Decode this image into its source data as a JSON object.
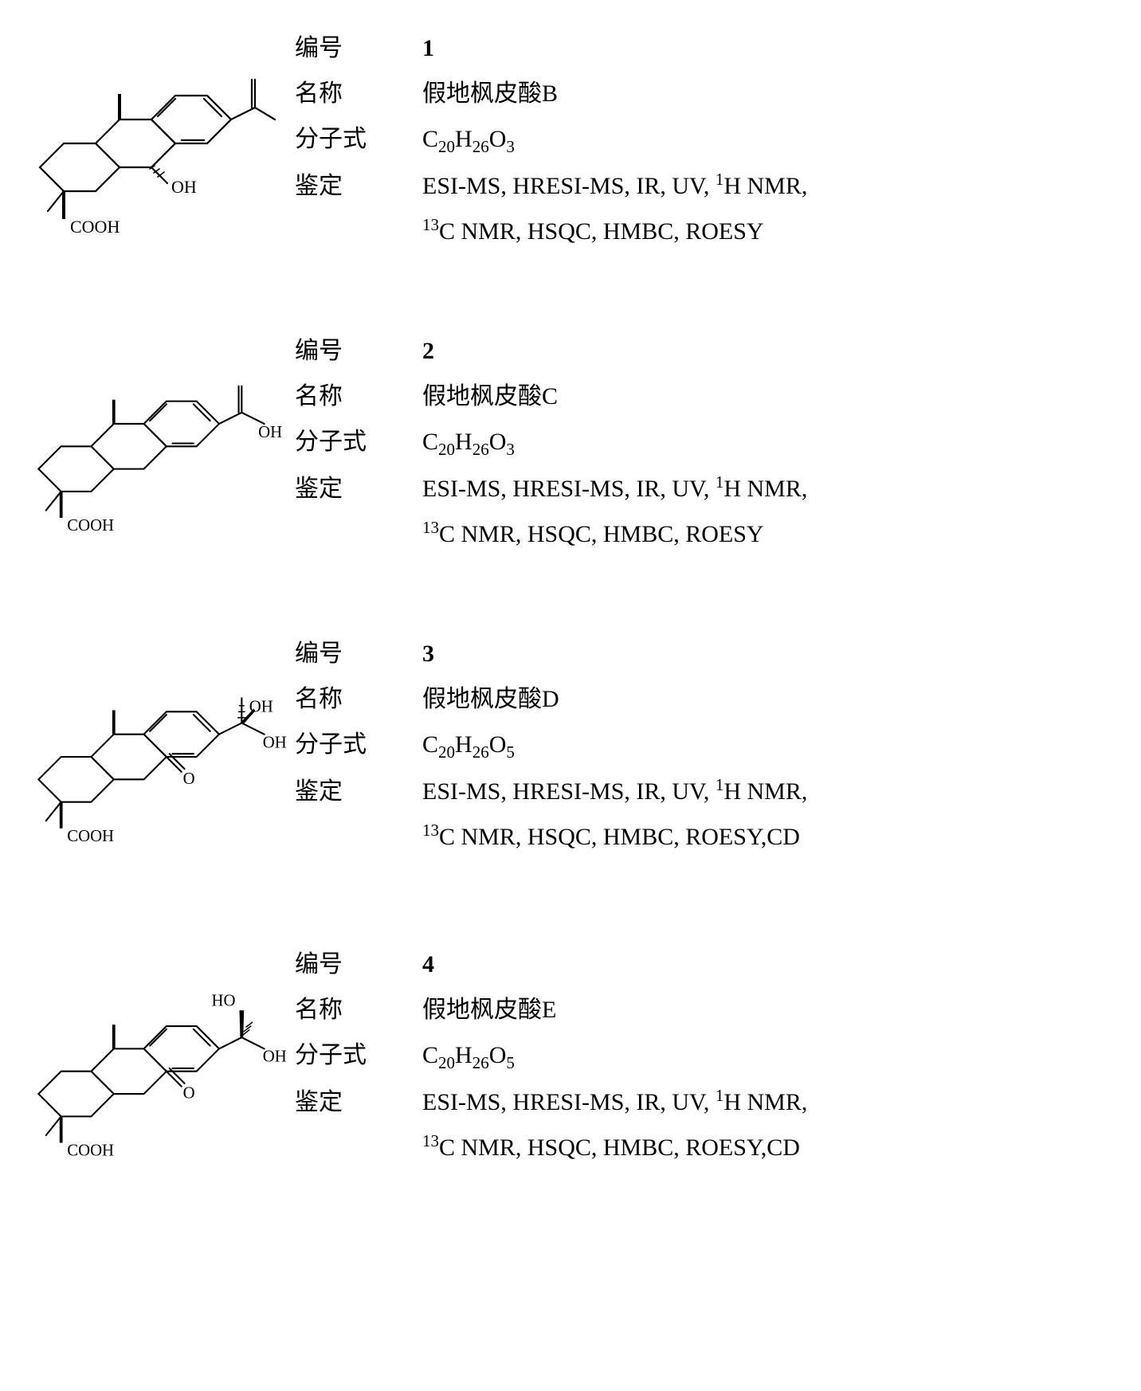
{
  "labels": {
    "number": "编号",
    "name": "名称",
    "formula": "分子式",
    "identification": "鉴定"
  },
  "compounds": [
    {
      "number": "1",
      "name": "假地枫皮酸B",
      "formula_html": "C<sub>20</sub>H<sub>26</sub>O<sub>3</sub>",
      "identification_line1_html": "ESI-MS, HRESI-MS, IR, UV, <sup>1</sup>H NMR,",
      "identification_line2_html": "<sup>13</sup>C NMR, HSQC, HMBC, ROESY"
    },
    {
      "number": "2",
      "name": "假地枫皮酸C",
      "formula_html": "C<sub>20</sub>H<sub>26</sub>O<sub>3</sub>",
      "identification_line1_html": "ESI-MS, HRESI-MS, IR, UV, <sup>1</sup>H NMR,",
      "identification_line2_html": "<sup>13</sup>C NMR, HSQC, HMBC, ROESY"
    },
    {
      "number": "3",
      "name": "假地枫皮酸D",
      "formula_html": "C<sub>20</sub>H<sub>26</sub>O<sub>5</sub>",
      "identification_line1_html": "ESI-MS, HRESI-MS, IR, UV, <sup>1</sup>H NMR,",
      "identification_line2_html": "<sup>13</sup>C NMR, HSQC, HMBC, ROESY,CD"
    },
    {
      "number": "4",
      "name": "假地枫皮酸E",
      "formula_html": "C<sub>20</sub>H<sub>26</sub>O<sub>5</sub>",
      "identification_line1_html": "ESI-MS, HRESI-MS, IR, UV, <sup>1</sup>H NMR,",
      "identification_line2_html": "<sup>13</sup>C NMR, HSQC, HMBC, ROESY,CD"
    }
  ],
  "style": {
    "stroke_color": "#000000",
    "stroke_width": 2.2,
    "font_family": "Times New Roman",
    "atom_font_size": 22,
    "info_font_size": 30
  }
}
